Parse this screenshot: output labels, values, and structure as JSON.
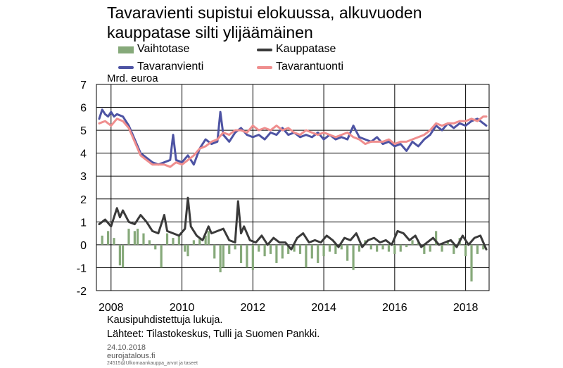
{
  "title": "Tavaravienti supistui elokuussa, alkuvuoden kauppatase silti ylijäämäinen",
  "legend": [
    {
      "key": "vaihtotase",
      "label": "Vaihtotase",
      "color": "#86a97a",
      "kind": "bar"
    },
    {
      "key": "kauppatase",
      "label": "Kauppatase",
      "color": "#3a3a3a",
      "kind": "line"
    },
    {
      "key": "tavaranvienti",
      "label": "Tavaranvienti",
      "color": "#4d53a3",
      "kind": "line"
    },
    {
      "key": "tavarantuonti",
      "label": "Tavarantuonti",
      "color": "#ef8e8e",
      "kind": "line"
    }
  ],
  "unit_label": "Mrd. euroa",
  "footnote": "Kausipuhdistettuja lukuja.",
  "sources": "Lähteet: Tilastokeskus, Tulli ja Suomen Pankki.",
  "date": "24.10.2018",
  "site": "eurojatalous.fi",
  "code": "24515@Ulkomaankauppa_arvot ja taseet",
  "chart_data": {
    "type": "line",
    "title": "Tavaravienti supistui elokuussa, alkuvuoden kauppatase silti ylijäämäinen",
    "ylabel": "Mrd. euroa",
    "ylim": [
      -2,
      7
    ],
    "yticks": [
      "-2",
      "-1",
      "0",
      "1",
      "2",
      "3",
      "4",
      "5",
      "6",
      "7"
    ],
    "xticks": [
      "2008",
      "2010",
      "2012",
      "2014",
      "2016",
      "2018"
    ],
    "x_range": [
      "2007-09",
      "2018-08"
    ],
    "grid": true,
    "legend_position": "top",
    "vaihtotase_points": [
      [
        "2007-10",
        0.4
      ],
      [
        "2007-12",
        0.6
      ],
      [
        "2008-02",
        0.3
      ],
      [
        "2008-04",
        -0.9
      ],
      [
        "2008-05",
        -1.0
      ],
      [
        "2008-07",
        0.7
      ],
      [
        "2008-09",
        0.6
      ],
      [
        "2008-10",
        0.7
      ],
      [
        "2008-12",
        0.5
      ],
      [
        "2009-02",
        0.2
      ],
      [
        "2009-04",
        -0.2
      ],
      [
        "2009-06",
        -1.0
      ],
      [
        "2009-08",
        0.5
      ],
      [
        "2009-10",
        0.3
      ],
      [
        "2009-12",
        0.4
      ],
      [
        "2010-02",
        -0.3
      ],
      [
        "2010-03",
        -0.5
      ],
      [
        "2010-05",
        0.2
      ],
      [
        "2010-07",
        0.3
      ],
      [
        "2010-09",
        0.4
      ],
      [
        "2010-10",
        0.6
      ],
      [
        "2010-12",
        -0.6
      ],
      [
        "2011-02",
        -1.2
      ],
      [
        "2011-03",
        -1.0
      ],
      [
        "2011-05",
        -0.4
      ],
      [
        "2011-07",
        -0.2
      ],
      [
        "2011-09",
        -0.8
      ],
      [
        "2011-11",
        -1.0
      ],
      [
        "2012-01",
        -1.1
      ],
      [
        "2012-03",
        -0.3
      ],
      [
        "2012-05",
        -0.5
      ],
      [
        "2012-07",
        -0.4
      ],
      [
        "2012-09",
        -0.8
      ],
      [
        "2012-11",
        -0.6
      ],
      [
        "2013-01",
        -0.4
      ],
      [
        "2013-03",
        -0.3
      ],
      [
        "2013-05",
        -0.4
      ],
      [
        "2013-07",
        -1.0
      ],
      [
        "2013-09",
        -0.6
      ],
      [
        "2013-11",
        -0.8
      ],
      [
        "2014-01",
        -0.5
      ],
      [
        "2014-03",
        -0.3
      ],
      [
        "2014-05",
        -0.4
      ],
      [
        "2014-07",
        -0.2
      ],
      [
        "2014-09",
        -0.7
      ],
      [
        "2014-11",
        -1.1
      ],
      [
        "2015-01",
        -0.3
      ],
      [
        "2015-03",
        0.2
      ],
      [
        "2015-05",
        -0.2
      ],
      [
        "2015-07",
        -0.3
      ],
      [
        "2015-09",
        -0.2
      ],
      [
        "2015-11",
        -0.3
      ],
      [
        "2016-01",
        -0.4
      ],
      [
        "2016-03",
        -0.3
      ],
      [
        "2016-05",
        -0.1
      ],
      [
        "2016-07",
        0.2
      ],
      [
        "2016-09",
        0.1
      ],
      [
        "2016-11",
        -0.4
      ],
      [
        "2017-01",
        -0.3
      ],
      [
        "2017-03",
        0.6
      ],
      [
        "2017-05",
        -0.3
      ],
      [
        "2017-07",
        0.2
      ],
      [
        "2017-09",
        -0.4
      ],
      [
        "2017-11",
        0.3
      ],
      [
        "2018-01",
        -0.5
      ],
      [
        "2018-03",
        -1.6
      ],
      [
        "2018-05",
        -0.4
      ],
      [
        "2018-07",
        -0.2
      ]
    ],
    "kauppatase_points": [
      [
        "2007-09",
        0.9
      ],
      [
        "2007-11",
        1.1
      ],
      [
        "2008-01",
        0.8
      ],
      [
        "2008-03",
        1.6
      ],
      [
        "2008-04",
        1.2
      ],
      [
        "2008-05",
        1.5
      ],
      [
        "2008-07",
        1.0
      ],
      [
        "2008-09",
        0.9
      ],
      [
        "2008-11",
        1.3
      ],
      [
        "2009-01",
        1.0
      ],
      [
        "2009-03",
        0.6
      ],
      [
        "2009-05",
        0.5
      ],
      [
        "2009-07",
        1.3
      ],
      [
        "2009-08",
        0.6
      ],
      [
        "2009-10",
        0.5
      ],
      [
        "2009-12",
        0.4
      ],
      [
        "2010-02",
        0.7
      ],
      [
        "2010-03",
        2.05
      ],
      [
        "2010-04",
        0.8
      ],
      [
        "2010-06",
        0.4
      ],
      [
        "2010-08",
        0.2
      ],
      [
        "2010-10",
        0.8
      ],
      [
        "2010-11",
        0.5
      ],
      [
        "2011-01",
        0.6
      ],
      [
        "2011-03",
        0.7
      ],
      [
        "2011-05",
        0.2
      ],
      [
        "2011-07",
        0.1
      ],
      [
        "2011-08",
        1.9
      ],
      [
        "2011-09",
        0.5
      ],
      [
        "2011-10",
        0.8
      ],
      [
        "2011-12",
        0.2
      ],
      [
        "2012-02",
        0.1
      ],
      [
        "2012-04",
        0.4
      ],
      [
        "2012-06",
        0.0
      ],
      [
        "2012-08",
        0.3
      ],
      [
        "2012-10",
        0.1
      ],
      [
        "2012-12",
        0.1
      ],
      [
        "2013-02",
        -0.2
      ],
      [
        "2013-04",
        0.3
      ],
      [
        "2013-06",
        0.5
      ],
      [
        "2013-08",
        0.1
      ],
      [
        "2013-10",
        0.2
      ],
      [
        "2013-12",
        0.1
      ],
      [
        "2014-02",
        0.4
      ],
      [
        "2014-04",
        0.2
      ],
      [
        "2014-06",
        -0.1
      ],
      [
        "2014-08",
        0.3
      ],
      [
        "2014-10",
        0.2
      ],
      [
        "2014-12",
        0.5
      ],
      [
        "2015-02",
        -0.1
      ],
      [
        "2015-04",
        0.2
      ],
      [
        "2015-06",
        0.3
      ],
      [
        "2015-08",
        0.1
      ],
      [
        "2015-10",
        0.2
      ],
      [
        "2015-12",
        0.0
      ],
      [
        "2016-02",
        0.6
      ],
      [
        "2016-04",
        0.5
      ],
      [
        "2016-06",
        0.2
      ],
      [
        "2016-08",
        0.4
      ],
      [
        "2016-10",
        -0.1
      ],
      [
        "2016-12",
        0.1
      ],
      [
        "2017-02",
        0.3
      ],
      [
        "2017-04",
        0.0
      ],
      [
        "2017-06",
        0.1
      ],
      [
        "2017-08",
        0.2
      ],
      [
        "2017-10",
        -0.1
      ],
      [
        "2017-12",
        0.4
      ],
      [
        "2018-02",
        0.0
      ],
      [
        "2018-04",
        0.3
      ],
      [
        "2018-06",
        0.4
      ],
      [
        "2018-08",
        -0.2
      ]
    ],
    "tavaranvienti_points": [
      [
        "2007-09",
        5.5
      ],
      [
        "2007-10",
        5.9
      ],
      [
        "2007-11",
        5.7
      ],
      [
        "2007-12",
        5.6
      ],
      [
        "2008-01",
        5.8
      ],
      [
        "2008-02",
        5.6
      ],
      [
        "2008-03",
        5.7
      ],
      [
        "2008-05",
        5.6
      ],
      [
        "2008-07",
        5.2
      ],
      [
        "2008-09",
        4.6
      ],
      [
        "2008-11",
        4.0
      ],
      [
        "2009-01",
        3.8
      ],
      [
        "2009-03",
        3.6
      ],
      [
        "2009-05",
        3.5
      ],
      [
        "2009-07",
        3.6
      ],
      [
        "2009-09",
        3.7
      ],
      [
        "2009-10",
        4.8
      ],
      [
        "2009-11",
        3.7
      ],
      [
        "2010-01",
        3.6
      ],
      [
        "2010-03",
        3.9
      ],
      [
        "2010-05",
        3.5
      ],
      [
        "2010-07",
        4.2
      ],
      [
        "2010-09",
        4.6
      ],
      [
        "2010-11",
        4.4
      ],
      [
        "2011-01",
        4.5
      ],
      [
        "2011-02",
        5.8
      ],
      [
        "2011-03",
        4.8
      ],
      [
        "2011-05",
        4.5
      ],
      [
        "2011-07",
        4.9
      ],
      [
        "2011-09",
        5.1
      ],
      [
        "2011-11",
        4.8
      ],
      [
        "2012-01",
        4.7
      ],
      [
        "2012-03",
        4.8
      ],
      [
        "2012-05",
        4.6
      ],
      [
        "2012-07",
        4.9
      ],
      [
        "2012-09",
        4.8
      ],
      [
        "2012-11",
        5.1
      ],
      [
        "2013-01",
        4.8
      ],
      [
        "2013-03",
        4.9
      ],
      [
        "2013-05",
        4.7
      ],
      [
        "2013-07",
        4.8
      ],
      [
        "2013-09",
        4.7
      ],
      [
        "2013-11",
        4.9
      ],
      [
        "2014-01",
        4.6
      ],
      [
        "2014-03",
        4.8
      ],
      [
        "2014-05",
        4.6
      ],
      [
        "2014-07",
        4.7
      ],
      [
        "2014-09",
        4.6
      ],
      [
        "2014-11",
        5.2
      ],
      [
        "2015-01",
        4.7
      ],
      [
        "2015-03",
        4.6
      ],
      [
        "2015-05",
        4.5
      ],
      [
        "2015-07",
        4.7
      ],
      [
        "2015-09",
        4.4
      ],
      [
        "2015-11",
        4.5
      ],
      [
        "2016-01",
        4.3
      ],
      [
        "2016-03",
        4.4
      ],
      [
        "2016-05",
        4.1
      ],
      [
        "2016-07",
        4.5
      ],
      [
        "2016-09",
        4.3
      ],
      [
        "2016-11",
        4.6
      ],
      [
        "2017-01",
        4.8
      ],
      [
        "2017-03",
        5.2
      ],
      [
        "2017-05",
        5.0
      ],
      [
        "2017-07",
        5.3
      ],
      [
        "2017-09",
        5.1
      ],
      [
        "2017-11",
        5.3
      ],
      [
        "2018-01",
        5.2
      ],
      [
        "2018-03",
        5.4
      ],
      [
        "2018-05",
        5.5
      ],
      [
        "2018-07",
        5.3
      ],
      [
        "2018-08",
        5.2
      ]
    ],
    "tavarantuonti_points": [
      [
        "2007-09",
        5.3
      ],
      [
        "2007-11",
        5.4
      ],
      [
        "2008-01",
        5.2
      ],
      [
        "2008-03",
        5.5
      ],
      [
        "2008-05",
        5.4
      ],
      [
        "2008-07",
        5.1
      ],
      [
        "2008-09",
        4.5
      ],
      [
        "2008-11",
        3.9
      ],
      [
        "2009-01",
        3.7
      ],
      [
        "2009-03",
        3.5
      ],
      [
        "2009-05",
        3.5
      ],
      [
        "2009-07",
        3.5
      ],
      [
        "2009-09",
        3.4
      ],
      [
        "2009-11",
        3.6
      ],
      [
        "2010-01",
        3.5
      ],
      [
        "2010-03",
        3.7
      ],
      [
        "2010-05",
        3.9
      ],
      [
        "2010-07",
        4.2
      ],
      [
        "2010-09",
        4.3
      ],
      [
        "2010-11",
        4.5
      ],
      [
        "2011-01",
        4.6
      ],
      [
        "2011-03",
        4.9
      ],
      [
        "2011-05",
        4.8
      ],
      [
        "2011-07",
        5.0
      ],
      [
        "2011-09",
        5.0
      ],
      [
        "2011-11",
        4.9
      ],
      [
        "2012-01",
        5.2
      ],
      [
        "2012-03",
        5.0
      ],
      [
        "2012-05",
        5.1
      ],
      [
        "2012-07",
        5.0
      ],
      [
        "2012-09",
        5.2
      ],
      [
        "2012-11",
        5.0
      ],
      [
        "2013-01",
        5.1
      ],
      [
        "2013-03",
        4.9
      ],
      [
        "2013-05",
        4.8
      ],
      [
        "2013-07",
        5.0
      ],
      [
        "2013-09",
        4.9
      ],
      [
        "2013-11",
        4.8
      ],
      [
        "2014-01",
        4.9
      ],
      [
        "2014-03",
        4.8
      ],
      [
        "2014-05",
        4.7
      ],
      [
        "2014-07",
        4.8
      ],
      [
        "2014-09",
        4.9
      ],
      [
        "2014-11",
        4.7
      ],
      [
        "2015-01",
        4.6
      ],
      [
        "2015-03",
        4.4
      ],
      [
        "2015-05",
        4.5
      ],
      [
        "2015-07",
        4.5
      ],
      [
        "2015-09",
        4.5
      ],
      [
        "2015-11",
        4.6
      ],
      [
        "2016-01",
        4.4
      ],
      [
        "2016-03",
        4.5
      ],
      [
        "2016-05",
        4.5
      ],
      [
        "2016-07",
        4.6
      ],
      [
        "2016-09",
        4.7
      ],
      [
        "2016-11",
        4.8
      ],
      [
        "2017-01",
        5.0
      ],
      [
        "2017-03",
        5.3
      ],
      [
        "2017-05",
        5.2
      ],
      [
        "2017-07",
        5.3
      ],
      [
        "2017-09",
        5.3
      ],
      [
        "2017-11",
        5.4
      ],
      [
        "2018-01",
        5.4
      ],
      [
        "2018-03",
        5.5
      ],
      [
        "2018-05",
        5.4
      ],
      [
        "2018-07",
        5.6
      ],
      [
        "2018-08",
        5.6
      ]
    ]
  }
}
